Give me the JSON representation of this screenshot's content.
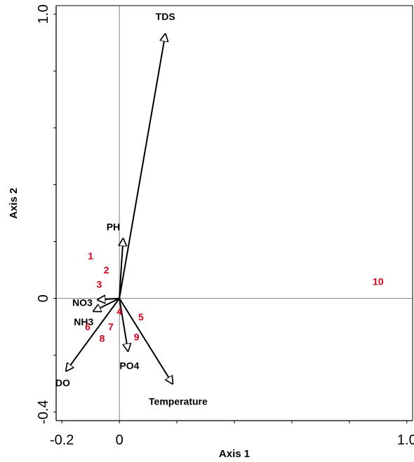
{
  "chart_data": {
    "type": "scatter",
    "title": "",
    "xlabel": "Axis 1",
    "ylabel": "Axis 2",
    "xlim": [
      -0.22,
      1.02
    ],
    "ylim": [
      -0.43,
      1.03
    ],
    "x_tick_labels": [
      {
        "value": -0.2,
        "label": "-0.2"
      },
      {
        "value": 0,
        "label": "0"
      },
      {
        "value": 1.0,
        "label": "1.0"
      }
    ],
    "y_tick_labels": [
      {
        "value": -0.4,
        "label": "-0.4"
      },
      {
        "value": 0,
        "label": "0"
      },
      {
        "value": 1.0,
        "label": "1.0"
      }
    ],
    "x_minor_ticks": [
      -0.2,
      0,
      0.2,
      0.4,
      0.6,
      0.8,
      1.0
    ],
    "y_minor_ticks": [
      -0.4,
      -0.2,
      0,
      0.2,
      0.4,
      0.6,
      0.8,
      1.0
    ],
    "reference_lines": {
      "x": 0,
      "y": 0
    },
    "vectors": [
      {
        "name": "TDS",
        "x": 0.16,
        "y": 0.93
      },
      {
        "name": "PH",
        "x": 0.013,
        "y": 0.21
      },
      {
        "name": "NO3",
        "x": -0.075,
        "y": -0.005
      },
      {
        "name": "NH3",
        "x": -0.09,
        "y": -0.045
      },
      {
        "name": "PO4",
        "x": 0.03,
        "y": -0.185
      },
      {
        "name": "DO",
        "x": -0.185,
        "y": -0.255
      },
      {
        "name": "Temperature",
        "x": 0.185,
        "y": -0.3
      }
    ],
    "sites": [
      {
        "label": "1",
        "x": -0.1,
        "y": 0.15
      },
      {
        "label": "2",
        "x": -0.045,
        "y": 0.1
      },
      {
        "label": "3",
        "x": -0.07,
        "y": 0.05
      },
      {
        "label": "4",
        "x": 0.0,
        "y": -0.045
      },
      {
        "label": "5",
        "x": 0.075,
        "y": -0.065
      },
      {
        "label": "6",
        "x": -0.11,
        "y": -0.1
      },
      {
        "label": "7",
        "x": -0.03,
        "y": -0.1
      },
      {
        "label": "8",
        "x": -0.06,
        "y": -0.14
      },
      {
        "label": "9",
        "x": 0.06,
        "y": -0.135
      },
      {
        "label": "10",
        "x": 0.9,
        "y": 0.06
      }
    ],
    "colors": {
      "vectors": "#000000",
      "sites": "#d0021b",
      "reference_lines": "#808080",
      "frame": "#000000"
    }
  }
}
